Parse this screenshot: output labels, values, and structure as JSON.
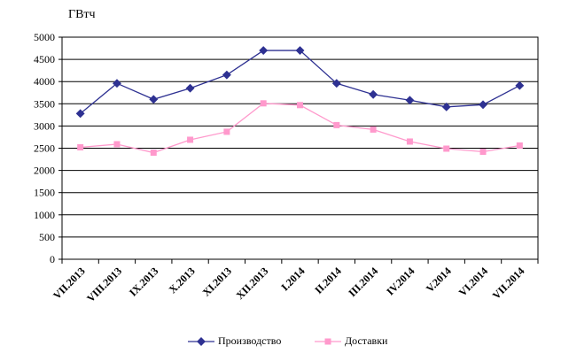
{
  "chart_data": {
    "type": "line",
    "unit_label": "ГВтч",
    "categories": [
      "VII.2013",
      "VIII.2013",
      "IX.2013",
      "X.2013",
      "XI.2013",
      "XII.2013",
      "I.2014",
      "II.2014",
      "III.2014",
      "IV.2014",
      "V.2014",
      "VI.2014",
      "VII.2014"
    ],
    "series": [
      {
        "name": "Производство",
        "color": "#2e3192",
        "marker": "diamond",
        "values": [
          3280,
          3960,
          3600,
          3850,
          4150,
          4700,
          4700,
          3960,
          3710,
          3580,
          3430,
          3480,
          3910
        ]
      },
      {
        "name": "Доставки",
        "color": "#ff99cc",
        "marker": "square",
        "values": [
          2520,
          2590,
          2400,
          2690,
          2870,
          3510,
          3470,
          3020,
          2920,
          2650,
          2490,
          2420,
          2560
        ]
      }
    ],
    "ylim": [
      0,
      5000
    ],
    "yticks": [
      0,
      500,
      1000,
      1500,
      2000,
      2500,
      3000,
      3500,
      4000,
      4500,
      5000
    ],
    "grid": true,
    "legend_position": "bottom"
  }
}
